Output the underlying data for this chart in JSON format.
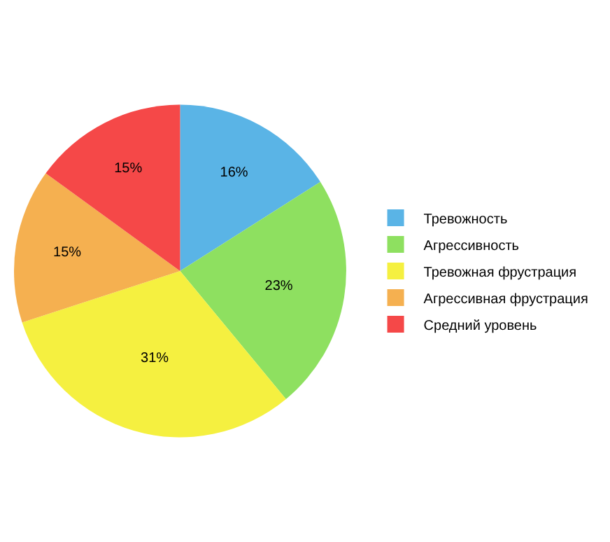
{
  "chart_data": {
    "type": "pie",
    "categories": [
      "Тревожность",
      "Агрессивность",
      "Тревожная фрустрация",
      "Агрессивная фрустрация",
      "Средний уровень"
    ],
    "values": [
      16,
      23,
      31,
      15,
      15
    ],
    "value_labels": [
      "16%",
      "23%",
      "31%",
      "15%",
      "15%"
    ],
    "colors": [
      "#5ab4e6",
      "#8ee060",
      "#f5f040",
      "#f5b050",
      "#f54848"
    ],
    "legend": "right"
  }
}
